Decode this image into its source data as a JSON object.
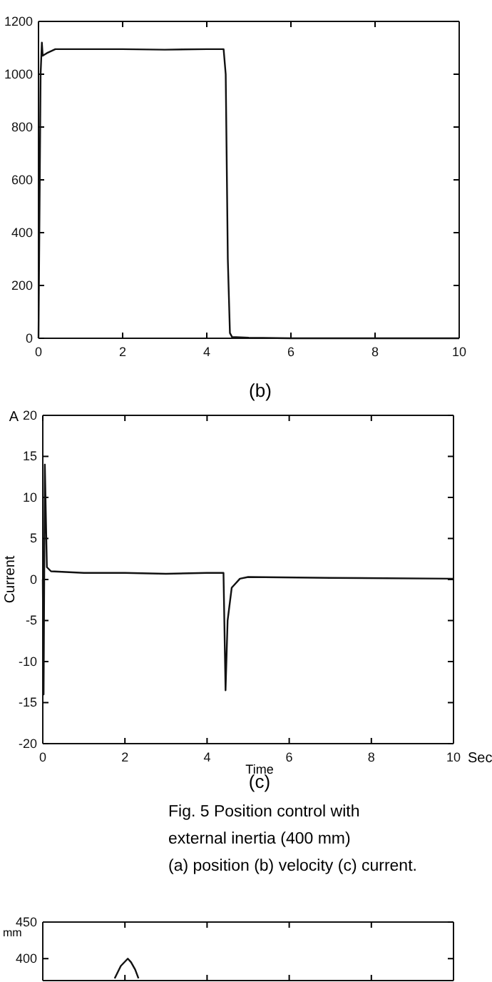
{
  "chart_data": [
    {
      "type": "line",
      "title": "(b)",
      "x": [
        0,
        0.05,
        0.08,
        0.1,
        0.2,
        0.4,
        1,
        2,
        3,
        4,
        4.4,
        4.45,
        4.5,
        4.55,
        4.6,
        5,
        6,
        8,
        10
      ],
      "series": [
        {
          "color": "#111111",
          "values": [
            0,
            1000,
            1120,
            1070,
            1080,
            1095,
            1095,
            1095,
            1093,
            1095,
            1095,
            1000,
            300,
            20,
            5,
            2,
            0,
            0,
            0
          ]
        }
      ],
      "xlim": [
        0,
        10
      ],
      "ylim": [
        0,
        1200
      ],
      "xticks": [
        0,
        2,
        4,
        6,
        8,
        10
      ],
      "yticks": [
        0,
        200,
        400,
        600,
        800,
        1000,
        1200
      ],
      "grid": false,
      "marker": "none",
      "line_style": "solid"
    },
    {
      "type": "line",
      "title": "(c)",
      "xlabel": "Time",
      "ylabel": "Current",
      "x": [
        0,
        0.02,
        0.05,
        0.1,
        0.2,
        1,
        2,
        3,
        4,
        4.4,
        4.45,
        4.5,
        4.6,
        4.8,
        5,
        7,
        10
      ],
      "series": [
        {
          "color": "#111111",
          "values": [
            0,
            -14,
            14,
            1.5,
            1,
            0.8,
            0.8,
            0.7,
            0.8,
            0.8,
            -13.5,
            -5,
            -1,
            0.1,
            0.3,
            0.2,
            0.1
          ]
        }
      ],
      "annotations": [
        "A",
        "Sec",
        "Fig. 5 Position control with",
        "external inertia (400 mm)",
        "(a) position (b) velocity (c) current."
      ],
      "xlim": [
        0,
        10
      ],
      "ylim": [
        -20,
        20
      ],
      "xticks": [
        0,
        2,
        4,
        6,
        8,
        10
      ],
      "yticks": [
        -20,
        -15,
        -10,
        -5,
        0,
        5,
        10,
        15,
        20
      ],
      "grid": false,
      "marker": "none",
      "line_style": "solid"
    },
    {
      "type": "line",
      "ylabel": "mm",
      "x": [
        1.75,
        1.9,
        2.07,
        2.15,
        2.25,
        2.33
      ],
      "series": [
        {
          "color": "#111111",
          "values": [
            373,
            390,
            400,
            395,
            385,
            373
          ]
        }
      ],
      "xlim": [
        0,
        10
      ],
      "ylim": [
        370,
        450
      ],
      "xticks": [
        {
          "value": 2,
          "label": null
        },
        {
          "value": 4,
          "label": null
        },
        {
          "value": 6,
          "label": null
        },
        {
          "value": 8,
          "label": null
        }
      ],
      "yticks": [
        400,
        450
      ],
      "tick_labels": "y",
      "grid": false,
      "marker": "none",
      "line_style": "solid"
    }
  ]
}
